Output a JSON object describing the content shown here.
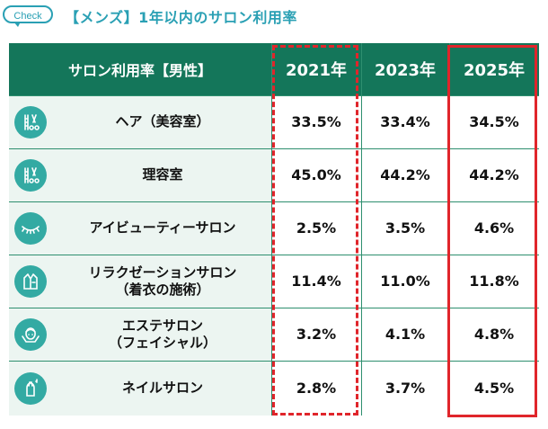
{
  "header": {
    "badge": "Check",
    "title": "【メンズ】1年以内のサロン利用率"
  },
  "chart_data": {
    "type": "table",
    "title": "【メンズ】1年以内のサロン利用率",
    "corner_label": "サロン利用率【男性】",
    "years": [
      "2021年",
      "2023年",
      "2025年"
    ],
    "rows": [
      {
        "icon": "hair-tools-icon",
        "label_lines": [
          "ヘア（美容室）"
        ],
        "values": [
          "33.5%",
          "33.4%",
          "34.5%"
        ]
      },
      {
        "icon": "hair-tools-icon",
        "label_lines": [
          "理容室"
        ],
        "values": [
          "45.0%",
          "44.2%",
          "44.2%"
        ]
      },
      {
        "icon": "eyelash-icon",
        "label_lines": [
          "アイビューティーサロン"
        ],
        "values": [
          "2.5%",
          "3.5%",
          "4.6%"
        ]
      },
      {
        "icon": "robe-icon",
        "label_lines": [
          "リラクゼーションサロン",
          "（着衣の施術）"
        ],
        "values": [
          "11.4%",
          "11.0%",
          "11.8%"
        ]
      },
      {
        "icon": "face-care-icon",
        "label_lines": [
          "エステサロン",
          "（フェイシャル）"
        ],
        "values": [
          "3.2%",
          "4.1%",
          "4.8%"
        ]
      },
      {
        "icon": "nail-icon",
        "label_lines": [
          "ネイルサロン"
        ],
        "values": [
          "2.8%",
          "3.7%",
          "4.5%"
        ]
      }
    ],
    "highlights": [
      {
        "year": "2021年",
        "style": "dashed"
      },
      {
        "year": "2025年",
        "style": "solid"
      }
    ]
  },
  "colors": {
    "header_green": "#14765a",
    "label_bg": "#ecf5f1",
    "icon_teal": "#33aaa3",
    "title_teal": "#2aa0b4",
    "highlight_red": "#e0252b"
  }
}
